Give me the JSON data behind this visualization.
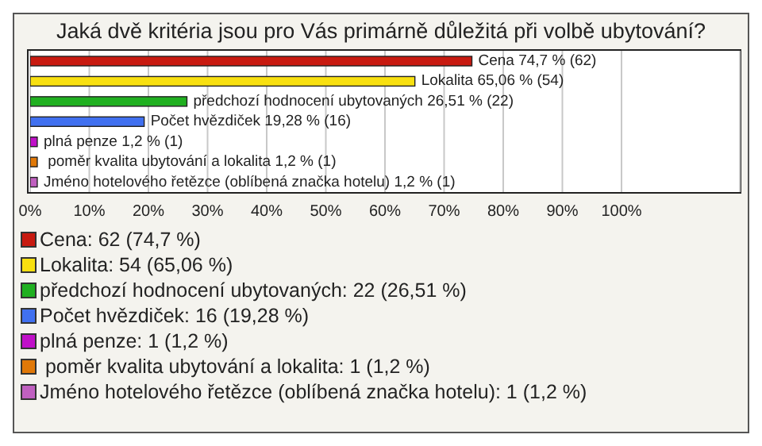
{
  "chart_data": {
    "type": "bar",
    "orientation": "horizontal",
    "stacked": true,
    "title": "Jaká dvě kritéria jsou pro Vás primárně důležitá při volbě ubytování?",
    "categories": [
      null,
      null,
      null,
      null,
      null,
      null,
      null
    ],
    "series": [
      {
        "name": "Cena: 62 (74,7 %)",
        "color": "#c81a10",
        "values": [
          74.7,
          null,
          null,
          null,
          null,
          null,
          null
        ],
        "value_labels": [
          "Cena 74,7 % (62)",
          null,
          null,
          null,
          null,
          null,
          null
        ]
      },
      {
        "name": "Lokalita: 54 (65,06 %)",
        "color": "#f8e010",
        "values": [
          null,
          65.06,
          null,
          null,
          null,
          null,
          null
        ],
        "value_labels": [
          null,
          "Lokalita 65,06 % (54)",
          null,
          null,
          null,
          null,
          null
        ]
      },
      {
        "name": "předchozí hodnocení ubytovaných: 22 (26,51 %)",
        "color": "#20b020",
        "values": [
          null,
          null,
          26.51,
          null,
          null,
          null,
          null
        ],
        "value_labels": [
          null,
          null,
          "předchozí hodnocení ubytovaných 26,51 % (22)",
          null,
          null,
          null,
          null
        ]
      },
      {
        "name": "Počet hvězdiček: 16 (19,28 %)",
        "color": "#4070f0",
        "values": [
          null,
          null,
          null,
          19.28,
          null,
          null,
          null
        ],
        "value_labels": [
          null,
          null,
          null,
          "Počet hvězdiček 19,28 % (16)",
          null,
          null,
          null
        ]
      },
      {
        "name": "plná penze: 1 (1,2 %)",
        "color": "#c010c8",
        "values": [
          null,
          null,
          null,
          null,
          1.2,
          null,
          null
        ],
        "value_labels": [
          null,
          null,
          null,
          null,
          "plná penze 1,2 % (1)",
          null,
          null
        ]
      },
      {
        "name": " poměr kvalita ubytování a lokalita: 1 (1,2 %)",
        "color": "#e07808",
        "values": [
          null,
          null,
          null,
          null,
          null,
          1.2,
          null
        ],
        "value_labels": [
          null,
          null,
          null,
          null,
          null,
          " poměr kvalita ubytování a lokalita 1,2 % (1)",
          null
        ]
      },
      {
        "name": "Jméno hotelového řetězce (oblíbená značka hotelu): 1 (1,2 %)",
        "color": "#c060c0",
        "values": [
          null,
          null,
          null,
          null,
          null,
          null,
          1.2
        ],
        "value_labels": [
          null,
          null,
          null,
          null,
          null,
          null,
          "Jméno hotelového řetězce (oblíbená značka hotelu) 1,2 % (1)"
        ]
      }
    ],
    "xlim": [
      0,
      120
    ],
    "xticks": [
      {
        "value": 0,
        "label": "0%"
      },
      {
        "value": 10,
        "label": "10%"
      },
      {
        "value": 20,
        "label": "20%"
      },
      {
        "value": 30,
        "label": "30%"
      },
      {
        "value": 40,
        "label": "40%"
      },
      {
        "value": 50,
        "label": "50%"
      },
      {
        "value": 60,
        "label": "60%"
      },
      {
        "value": 70,
        "label": "70%"
      },
      {
        "value": 80,
        "label": "80%"
      },
      {
        "value": 90,
        "label": "90%"
      },
      {
        "value": 100,
        "label": "100%"
      }
    ],
    "grid": "x",
    "legend": "bottom"
  }
}
